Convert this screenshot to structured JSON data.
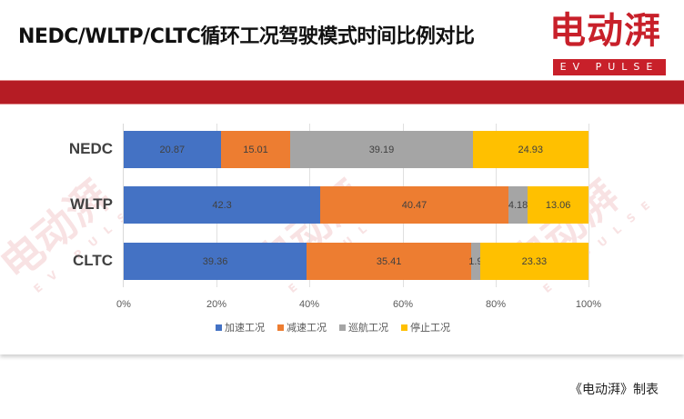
{
  "header": {
    "title": "NEDC/WLTP/CLTC循环工况驾驶模式时间比例对比",
    "logo_cn": "电动湃",
    "logo_en": "EV PULSE"
  },
  "footer": {
    "credit": "《电动湃》制表"
  },
  "colors": {
    "brand_red": "#c8202a",
    "band_red": "#b51c24",
    "series": [
      "#4472c4",
      "#ed7d31",
      "#a5a5a5",
      "#ffc000"
    ]
  },
  "chart_data": {
    "type": "bar",
    "orientation": "horizontal",
    "stacked": "percent",
    "title": "NEDC/WLTP/CLTC循环工况驾驶模式时间比例对比",
    "xlabel": "",
    "ylabel": "",
    "categories": [
      "NEDC",
      "WLTP",
      "CLTC"
    ],
    "series": [
      {
        "name": "加速工况",
        "color": "#4472c4",
        "values": [
          20.87,
          42.3,
          39.36
        ]
      },
      {
        "name": "减速工况",
        "color": "#ed7d31",
        "values": [
          15.01,
          40.47,
          35.41
        ]
      },
      {
        "name": "巡航工况",
        "color": "#a5a5a5",
        "values": [
          39.19,
          4.18,
          1.9
        ]
      },
      {
        "name": "停止工况",
        "color": "#ffc000",
        "values": [
          24.93,
          13.06,
          23.33
        ]
      }
    ],
    "xlim": [
      0,
      100
    ],
    "xticks": [
      "0%",
      "20%",
      "40%",
      "60%",
      "80%",
      "100%"
    ],
    "grid": true,
    "legend_position": "bottom",
    "data_labels": true
  }
}
